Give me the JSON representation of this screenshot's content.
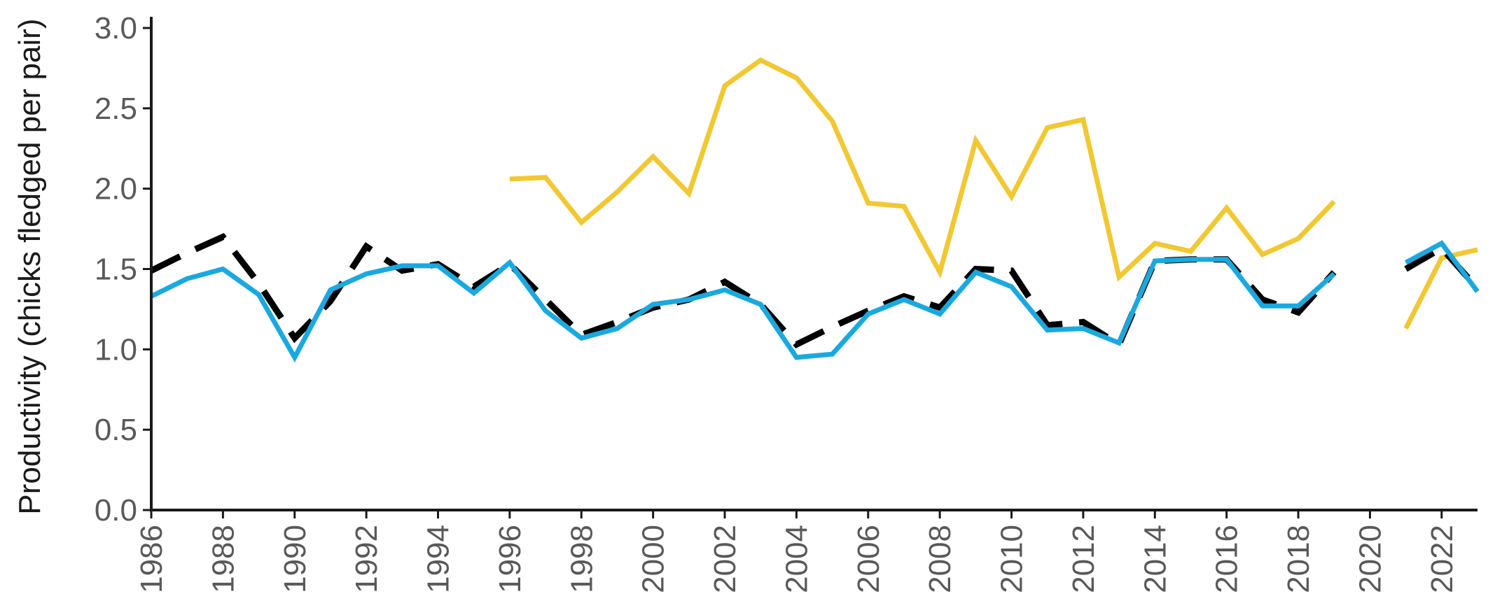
{
  "chart_data": {
    "type": "line",
    "title": "",
    "xlabel": "",
    "ylabel": "Productivity (chicks fledged per pair)",
    "xlim": [
      1986,
      2023
    ],
    "ylim": [
      0,
      3.0
    ],
    "grid": false,
    "legend": "none",
    "x_ticks": [
      "1986",
      "1988",
      "1990",
      "1992",
      "1994",
      "1996",
      "1998",
      "2000",
      "2002",
      "2004",
      "2006",
      "2008",
      "2010",
      "2012",
      "2014",
      "2016",
      "2018",
      "2020",
      "2022"
    ],
    "y_ticks": [
      "0.0",
      "0.5",
      "1.0",
      "1.5",
      "2.0",
      "2.5",
      "3.0"
    ],
    "series": [
      {
        "color": "#f2c832",
        "dash": "solid",
        "points": [
          [
            1996,
            2.06
          ],
          [
            1997,
            2.07
          ],
          [
            1998,
            1.79
          ],
          [
            1999,
            1.98
          ],
          [
            2000,
            2.2
          ],
          [
            2001,
            1.97
          ],
          [
            2002,
            2.64
          ],
          [
            2003,
            2.8
          ],
          [
            2004,
            2.69
          ],
          [
            2005,
            2.42
          ],
          [
            2006,
            1.91
          ],
          [
            2007,
            1.89
          ],
          [
            2008,
            1.48
          ],
          [
            2009,
            2.3
          ],
          [
            2010,
            1.95
          ],
          [
            2011,
            2.38
          ],
          [
            2012,
            2.43
          ],
          [
            2013,
            1.45
          ],
          [
            2014,
            1.66
          ],
          [
            2015,
            1.61
          ],
          [
            2016,
            1.88
          ],
          [
            2017,
            1.59
          ],
          [
            2018,
            1.69
          ],
          [
            2019,
            1.92
          ],
          null,
          [
            2021,
            1.13
          ],
          [
            2022,
            1.57
          ],
          [
            2023,
            1.62
          ]
        ]
      },
      {
        "color": "#1aa9df",
        "dash": "solid",
        "points": [
          [
            1986,
            1.33
          ],
          [
            1987,
            1.44
          ],
          [
            1988,
            1.5
          ],
          [
            1989,
            1.34
          ],
          [
            1990,
            0.95
          ],
          [
            1991,
            1.37
          ],
          [
            1992,
            1.47
          ],
          [
            1993,
            1.52
          ],
          [
            1994,
            1.52
          ],
          [
            1995,
            1.35
          ],
          [
            1996,
            1.54
          ],
          [
            1997,
            1.24
          ],
          [
            1998,
            1.07
          ],
          [
            1999,
            1.13
          ],
          [
            2000,
            1.28
          ],
          [
            2001,
            1.31
          ],
          [
            2002,
            1.37
          ],
          [
            2003,
            1.28
          ],
          [
            2004,
            0.95
          ],
          [
            2005,
            0.97
          ],
          [
            2006,
            1.22
          ],
          [
            2007,
            1.31
          ],
          [
            2008,
            1.22
          ],
          [
            2009,
            1.48
          ],
          [
            2010,
            1.39
          ],
          [
            2011,
            1.12
          ],
          [
            2012,
            1.13
          ],
          [
            2013,
            1.04
          ],
          [
            2014,
            1.55
          ],
          [
            2015,
            1.56
          ],
          [
            2016,
            1.56
          ],
          [
            2017,
            1.27
          ],
          [
            2018,
            1.27
          ],
          [
            2019,
            1.47
          ],
          null,
          [
            2021,
            1.54
          ],
          [
            2022,
            1.66
          ],
          [
            2023,
            1.36
          ]
        ]
      },
      {
        "color": "#000000",
        "dash": "dashed",
        "points": [
          [
            1986,
            1.49
          ],
          [
            1987,
            1.6
          ],
          [
            1988,
            1.7
          ],
          [
            1989,
            1.41
          ],
          [
            1990,
            1.07
          ],
          [
            1991,
            1.3
          ],
          [
            1992,
            1.64
          ],
          [
            1993,
            1.49
          ],
          [
            1994,
            1.53
          ],
          [
            1995,
            1.39
          ],
          [
            1996,
            1.53
          ],
          [
            1997,
            1.31
          ],
          [
            1998,
            1.09
          ],
          [
            1999,
            1.17
          ],
          [
            2000,
            1.26
          ],
          [
            2001,
            1.31
          ],
          [
            2002,
            1.42
          ],
          [
            2003,
            1.28
          ],
          [
            2004,
            1.03
          ],
          [
            2005,
            1.14
          ],
          [
            2006,
            1.24
          ],
          [
            2007,
            1.33
          ],
          [
            2008,
            1.26
          ],
          [
            2009,
            1.5
          ],
          [
            2010,
            1.49
          ],
          [
            2011,
            1.15
          ],
          [
            2012,
            1.17
          ],
          [
            2013,
            1.03
          ],
          [
            2014,
            1.55
          ],
          [
            2015,
            1.56
          ],
          [
            2016,
            1.56
          ],
          [
            2017,
            1.31
          ],
          [
            2018,
            1.23
          ],
          [
            2019,
            1.48
          ],
          null,
          [
            2021,
            1.5
          ],
          [
            2022,
            1.63
          ],
          [
            2023,
            1.38
          ]
        ]
      }
    ]
  }
}
